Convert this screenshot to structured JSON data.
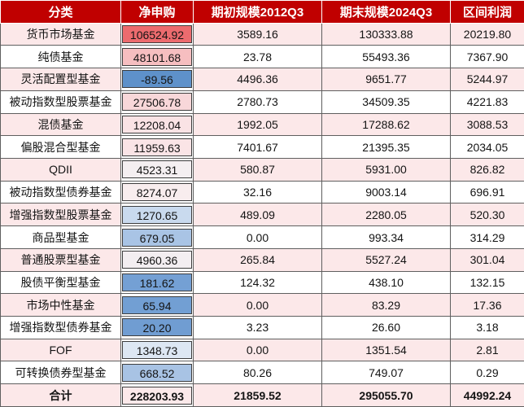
{
  "colors": {
    "header_bg": "#c00000",
    "header_text": "#ffffff",
    "stripe_pink": "#fce8e9",
    "grid_line": "#5f5f5f",
    "scale_max_red": "#ec6b6e",
    "scale_min_blue": "#5e91ca"
  },
  "chart_data": {
    "type": "table",
    "columns": [
      "分类",
      "净申购",
      "期初规模2012Q3",
      "期末规模2024Q3",
      "区间利润"
    ],
    "rows": [
      {
        "category": "货币市场基金",
        "net": "106524.92",
        "start": "3589.16",
        "end": "130333.88",
        "profit": "20219.80",
        "net_style": "background:#ec6b6e"
      },
      {
        "category": "纯债基金",
        "net": "48101.68",
        "start": "23.78",
        "end": "55493.36",
        "profit": "7367.90",
        "net_style": "background:#f6bec0"
      },
      {
        "category": "灵活配置型基金",
        "net": "-89.56",
        "start": "4496.36",
        "end": "9651.77",
        "profit": "5244.97",
        "net_style": "background:#5e91ca"
      },
      {
        "category": "被动指数型股票基金",
        "net": "27506.78",
        "start": "2780.73",
        "end": "34509.35",
        "profit": "4221.83",
        "net_style": "background:#f8d7d9"
      },
      {
        "category": "混债基金",
        "net": "12208.04",
        "start": "1992.05",
        "end": "17288.62",
        "profit": "3088.53",
        "net_style": "background:#fae3e5"
      },
      {
        "category": "偏股混合型基金",
        "net": "11959.63",
        "start": "7401.67",
        "end": "21395.35",
        "profit": "2034.05",
        "net_style": "background:#fae4e6"
      },
      {
        "category": "QDII",
        "net": "4523.31",
        "start": "580.87",
        "end": "5931.00",
        "profit": "826.82",
        "net_style": "background:#f4eff1"
      },
      {
        "category": "被动指数型债券基金",
        "net": "8274.07",
        "start": "32.16",
        "end": "9003.14",
        "profit": "696.91",
        "net_style": "background:#f8edee"
      },
      {
        "category": "增强指数型股票基金",
        "net": "1270.65",
        "start": "489.09",
        "end": "2280.05",
        "profit": "520.30",
        "net_style": "background:#c9daee"
      },
      {
        "category": "商品型基金",
        "net": "679.05",
        "start": "0.00",
        "end": "993.34",
        "profit": "314.29",
        "net_style": "background:#a9c4e5"
      },
      {
        "category": "普通股票型基金",
        "net": "4960.36",
        "start": "265.84",
        "end": "5527.24",
        "profit": "301.04",
        "net_style": "background:#f3eef1"
      },
      {
        "category": "股债平衡型基金",
        "net": "181.62",
        "start": "124.32",
        "end": "438.10",
        "profit": "132.15",
        "net_style": "background:#74a0d4"
      },
      {
        "category": "市场中性基金",
        "net": "65.94",
        "start": "0.00",
        "end": "83.29",
        "profit": "17.36",
        "net_style": "background:#729fd3"
      },
      {
        "category": "增强指数型债券基金",
        "net": "20.20",
        "start": "3.23",
        "end": "26.60",
        "profit": "3.18",
        "net_style": "background:#709dd2"
      },
      {
        "category": "FOF",
        "net": "1348.73",
        "start": "0.00",
        "end": "1351.54",
        "profit": "2.81",
        "net_style": "background:#dde7f3"
      },
      {
        "category": "可转换债券型基金",
        "net": "668.52",
        "start": "80.26",
        "end": "749.07",
        "profit": "0.29",
        "net_style": "background:#a8c3e4"
      },
      {
        "category": "合计",
        "net": "228203.93",
        "start": "21859.52",
        "end": "295055.70",
        "profit": "44992.24",
        "net_style": "background:#fce9ea"
      }
    ],
    "header": {
      "category": "分类",
      "net": "净申购",
      "start": "期初规模2012Q3",
      "end": "期末规模2024Q3",
      "profit": "区间利润"
    },
    "layout": {
      "conditional_format_column": "净申购",
      "scale": "blue-white-red",
      "striped_rows": true
    }
  }
}
